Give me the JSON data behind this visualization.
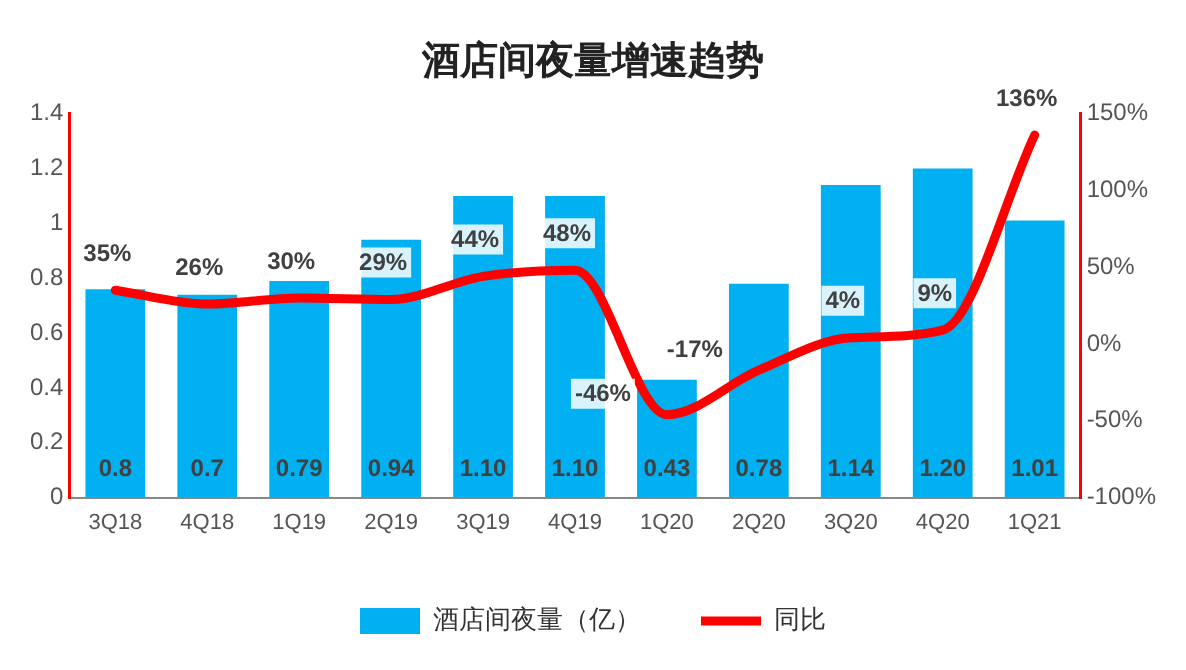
{
  "chart_data": {
    "type": "bar",
    "title": "酒店间夜量增速趋势",
    "categories": [
      "3Q18",
      "4Q18",
      "1Q19",
      "2Q19",
      "3Q19",
      "4Q19",
      "1Q20",
      "2Q20",
      "3Q20",
      "4Q20",
      "1Q21"
    ],
    "series": [
      {
        "name": "酒店间夜量（亿）",
        "type": "bar",
        "color": "#00b0f0",
        "values": [
          0.76,
          0.74,
          0.79,
          0.94,
          1.1,
          1.1,
          0.43,
          0.78,
          1.14,
          1.2,
          1.01
        ],
        "value_labels": [
          "0.8",
          "0.7",
          "0.79",
          "0.94",
          "1.10",
          "1.10",
          "0.43",
          "0.78",
          "1.14",
          "1.20",
          "1.01"
        ]
      },
      {
        "name": "同比",
        "type": "line",
        "axis": "y2",
        "color": "#ff0000",
        "values": [
          35,
          26,
          30,
          29,
          44,
          48,
          -46,
          -17,
          4,
          9,
          136
        ],
        "value_labels": [
          "35%",
          "26%",
          "30%",
          "29%",
          "44%",
          "48%",
          "-46%",
          "-17%",
          "4%",
          "9%",
          "136%"
        ]
      }
    ],
    "ylim": [
      0,
      1.4
    ],
    "yticks": [
      0,
      0.2,
      0.4,
      0.6,
      0.8,
      1.0,
      1.2,
      1.4
    ],
    "y2lim": [
      -100,
      150
    ],
    "y2ticks": [
      {
        "value": -100,
        "label": "-100%"
      },
      {
        "value": -50,
        "label": "-50%"
      },
      {
        "value": 0,
        "label": "0%"
      },
      {
        "value": 50,
        "label": "50%"
      },
      {
        "value": 100,
        "label": "100%"
      },
      {
        "value": 150,
        "label": "150%"
      }
    ],
    "legend": "bottom",
    "marker": "none",
    "grid": false
  }
}
